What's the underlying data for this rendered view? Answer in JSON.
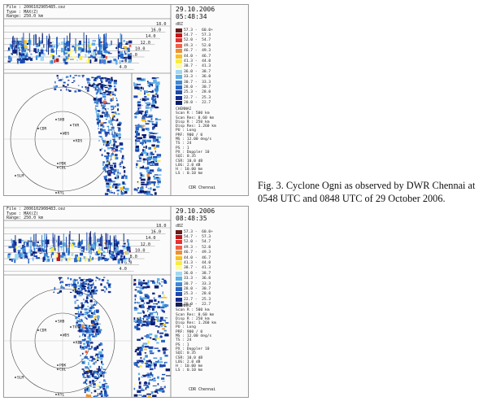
{
  "panels": [
    {
      "file": "File : 2006102905485.cez",
      "type": "Type : MAX(Z)",
      "range": "Range: 250.0 km",
      "date": "29.10.2006",
      "time": "05:48:34",
      "dbz": "dBZ",
      "scale_labels": [
        "18.0",
        "16.0",
        "14.0",
        "12.0",
        "10.0",
        "8.0",
        "6.0",
        "4.0"
      ],
      "legend": [
        {
          "range": "57.3 -  60.0+",
          "color": "#6a1a1a"
        },
        {
          "range": "54.7 -  57.3",
          "color": "#c01818"
        },
        {
          "range": "52.0 -  54.7",
          "color": "#e83030"
        },
        {
          "range": "49.3 -  52.0",
          "color": "#f06048"
        },
        {
          "range": "46.7 -  49.3",
          "color": "#f09030"
        },
        {
          "range": "44.0 -  46.7",
          "color": "#f8c020"
        },
        {
          "range": "41.3 -  44.0",
          "color": "#f8ec40"
        },
        {
          "range": "38.7 -  41.3",
          "color": "#fffaa0"
        },
        {
          "range": "36.0 -  38.7",
          "color": "#a0d8f0"
        },
        {
          "range": "33.3 -  36.0",
          "color": "#60b0e8"
        },
        {
          "range": "30.7 -  33.3",
          "color": "#3c88d8"
        },
        {
          "range": "28.0 -  30.7",
          "color": "#2a68c8"
        },
        {
          "range": "25.3 -  28.0",
          "color": "#1c48b0"
        },
        {
          "range": "22.7 -  25.3",
          "color": "#142c90"
        },
        {
          "range": "20.0 -  22.7",
          "color": "#0c1c6c"
        }
      ],
      "info": "CHENNAI\nScan R : 500 km\nScan Res: 0.60 km\nDisp R : 250 km\nDisp Res: 1.260 km\nPU : Long\nPRF: 900 / 0\nMS : 12.00 deg/s\nTS : 24\nPS : 1\nPX : Doppler 10\nSQI: 0.35\nCSR: 10.0 dB\nLOG: 2.0 dB\nH : 10.00 km\nLS : 0.10 km",
      "cdr": "CDR Chennai",
      "places": [
        "SHB",
        "TVR",
        "WDS",
        "KDS",
        "CDR",
        "PDK",
        "COL",
        "SLM",
        "KYL"
      ]
    },
    {
      "file": "File : 2006102908483.cez",
      "type": "Type : MAX(Z)",
      "range": "Range: 250.0 km",
      "date": "29.10.2006",
      "time": "08:48:35",
      "dbz": "dBZ",
      "scale_labels": [
        "18.0",
        "16.0",
        "14.0",
        "12.0",
        "10.0",
        "8.0",
        "6.0",
        "4.0"
      ],
      "legend": [
        {
          "range": "57.3 -  60.0+",
          "color": "#6a1a1a"
        },
        {
          "range": "54.7 -  57.3",
          "color": "#c01818"
        },
        {
          "range": "52.0 -  54.7",
          "color": "#e83030"
        },
        {
          "range": "49.3 -  52.0",
          "color": "#f06048"
        },
        {
          "range": "46.7 -  49.3",
          "color": "#f09030"
        },
        {
          "range": "44.0 -  46.7",
          "color": "#f8c020"
        },
        {
          "range": "41.3 -  44.0",
          "color": "#f8ec40"
        },
        {
          "range": "38.7 -  41.3",
          "color": "#fffaa0"
        },
        {
          "range": "36.0 -  38.7",
          "color": "#a0d8f0"
        },
        {
          "range": "33.3 -  36.0",
          "color": "#60b0e8"
        },
        {
          "range": "30.7 -  33.3",
          "color": "#3c88d8"
        },
        {
          "range": "28.0 -  30.7",
          "color": "#2a68c8"
        },
        {
          "range": "25.3 -  28.0",
          "color": "#1c48b0"
        },
        {
          "range": "22.7 -  25.3",
          "color": "#142c90"
        },
        {
          "range": "20.0 -  22.7",
          "color": "#0c1c6c"
        }
      ],
      "info": "CHENNAI\nScan R : 500 km\nScan Res: 0.60 km\nDisp R : 250 km\nDisp Res: 1.260 km\nPU : Long\nPRF: 900 / 0\nMS : 12.00 deg/s\nTS : 24\nPS : 1\nPX : Doppler 10\nSQI: 0.35\nCSR: 10.0 dB\nLOG: 2.0 dB\nH : 10.00 km\nLS : 0.10 km",
      "cdr": "CDR Chennai",
      "places": [
        "SHB",
        "TVR",
        "WDS",
        "KDS",
        "CDR",
        "PDK",
        "COL",
        "SLM",
        "KYL"
      ]
    }
  ],
  "caption": "Fig. 3. Cyclone Ogni as observed by DWR Chennai at 0548 UTC and 0848 UTC of 29 October 2006."
}
